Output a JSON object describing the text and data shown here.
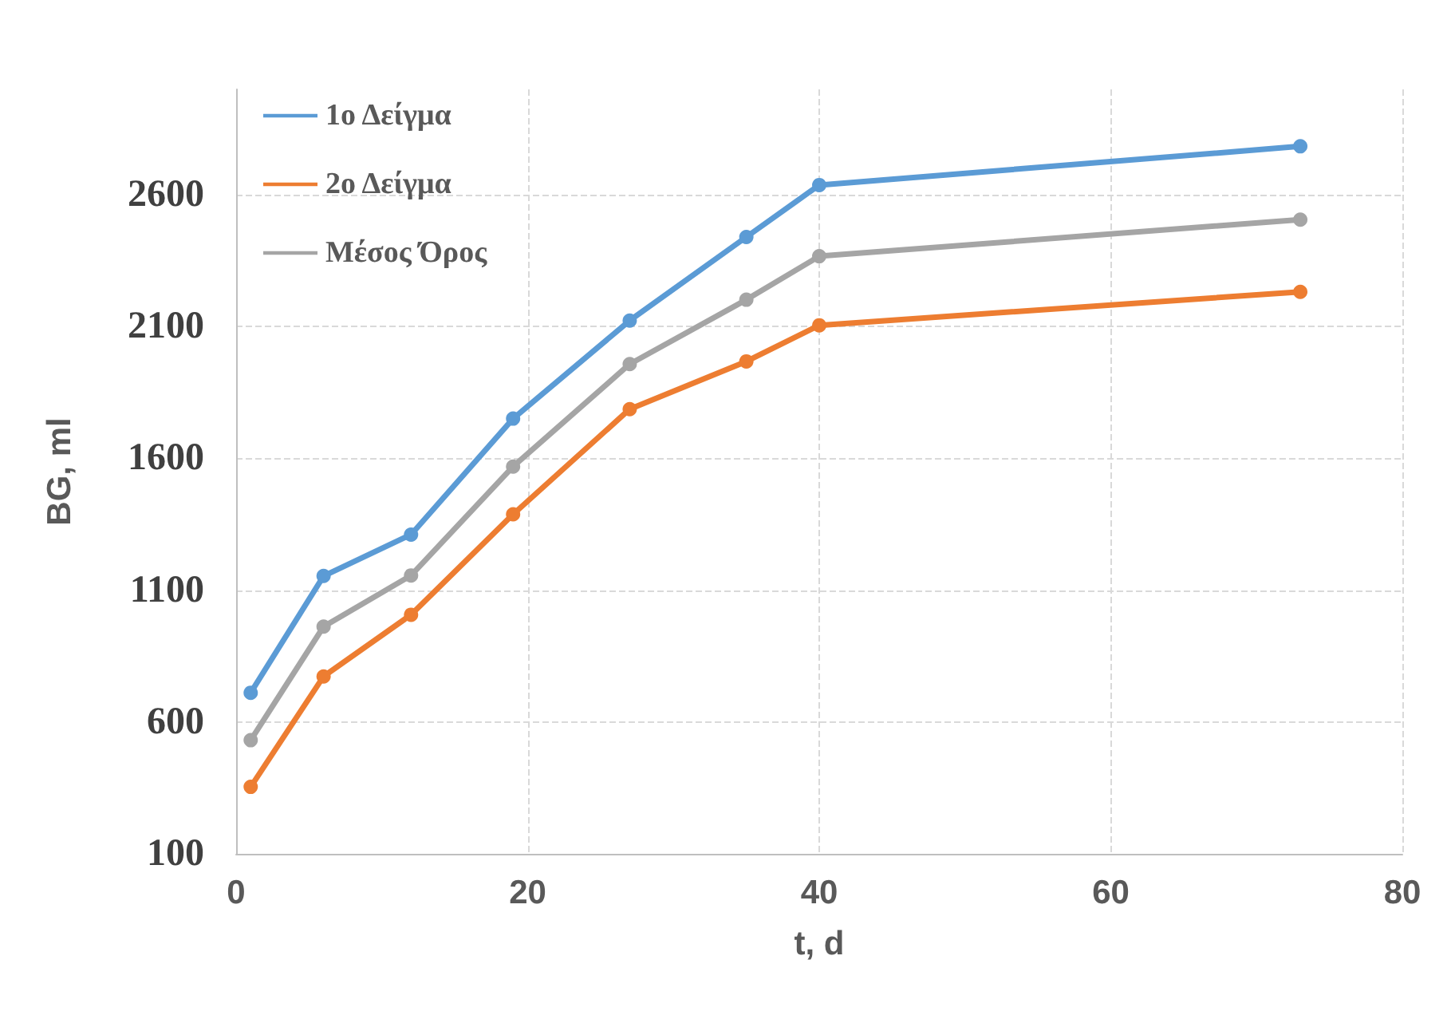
{
  "chart_data": {
    "type": "line",
    "xlabel": "t, d",
    "ylabel": "BG, ml",
    "x": [
      1,
      6,
      12,
      19,
      27,
      35,
      40,
      73
    ],
    "series": [
      {
        "name": "1ο Δείγμα",
        "color": "#5b9bd5",
        "values": [
          711,
          1154,
          1311,
          1751,
          2123,
          2440,
          2637,
          2784
        ]
      },
      {
        "name": "2ο Δείγμα",
        "color": "#ed7d31",
        "values": [
          354,
          773,
          1007,
          1388,
          1787,
          1968,
          2105,
          2232
        ]
      },
      {
        "name": "Μέσος Όρος",
        "color": "#a5a5a5",
        "values": [
          531,
          962,
          1156,
          1569,
          1958,
          2202,
          2367,
          2506
        ]
      }
    ],
    "xlim": [
      0,
      80
    ],
    "xticks": [
      0,
      20,
      40,
      60,
      80
    ],
    "ylim": [
      100,
      3000
    ],
    "yticks": [
      100,
      600,
      1100,
      1600,
      2100,
      2600
    ],
    "grid": true,
    "legend": "top left",
    "marker": "circle",
    "line_style": "solid"
  }
}
